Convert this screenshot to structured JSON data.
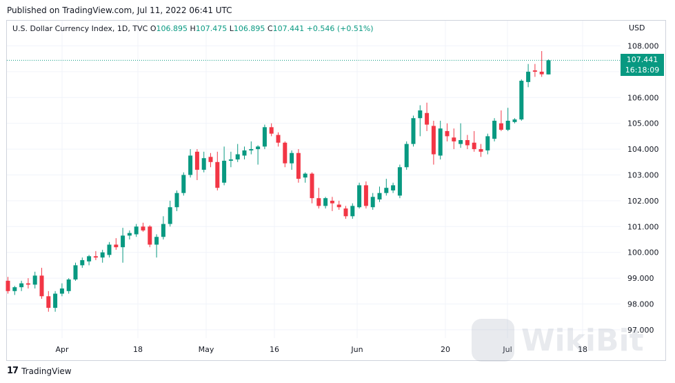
{
  "published": "Published on TradingView.com, Jul 11, 2022 06:41 UTC",
  "legend": {
    "symbol": "U.S. Dollar Currency Index, 1D, TVC",
    "o_label": "O",
    "o": "106.895",
    "h_label": "H",
    "h": "107.475",
    "l_label": "L",
    "l": "106.895",
    "c_label": "C",
    "c": "107.441",
    "change": "+0.546 (+0.51%)"
  },
  "currency": "USD",
  "price_tag": {
    "price": "107.441",
    "countdown": "16:18:09"
  },
  "footer": {
    "brand": "TradingView"
  },
  "watermark": "WikiBit",
  "colors": {
    "up": "#089981",
    "down": "#F23645",
    "grid": "#f0f3fa",
    "text": "#131722"
  },
  "chart_data": {
    "type": "candlestick",
    "title": "U.S. Dollar Currency Index, 1D, TVC",
    "ylabel": "USD",
    "ylim": [
      96.9,
      108.3
    ],
    "y_ticks": [
      "97.000",
      "98.000",
      "99.000",
      "100.000",
      "101.000",
      "102.000",
      "103.000",
      "104.000",
      "105.000",
      "106.000",
      "107.000",
      "108.000"
    ],
    "x_ticks": [
      "Apr",
      "18",
      "May",
      "16",
      "Jun",
      "20",
      "Jul",
      "18"
    ],
    "last_price": 107.441,
    "candles": [
      {
        "o": 98.9,
        "h": 99.05,
        "l": 98.4,
        "c": 98.5
      },
      {
        "o": 98.5,
        "h": 98.7,
        "l": 98.35,
        "c": 98.65
      },
      {
        "o": 98.65,
        "h": 98.9,
        "l": 98.5,
        "c": 98.8
      },
      {
        "o": 98.8,
        "h": 99.0,
        "l": 98.6,
        "c": 98.75
      },
      {
        "o": 98.75,
        "h": 99.25,
        "l": 98.6,
        "c": 99.1
      },
      {
        "o": 99.1,
        "h": 99.4,
        "l": 98.2,
        "c": 98.3
      },
      {
        "o": 98.3,
        "h": 98.5,
        "l": 97.7,
        "c": 97.85
      },
      {
        "o": 97.85,
        "h": 98.5,
        "l": 97.7,
        "c": 98.4
      },
      {
        "o": 98.4,
        "h": 98.8,
        "l": 98.3,
        "c": 98.6
      },
      {
        "o": 98.5,
        "h": 99.0,
        "l": 98.4,
        "c": 98.95
      },
      {
        "o": 98.95,
        "h": 99.6,
        "l": 98.9,
        "c": 99.5
      },
      {
        "o": 99.5,
        "h": 99.8,
        "l": 99.4,
        "c": 99.7
      },
      {
        "o": 99.65,
        "h": 99.9,
        "l": 99.5,
        "c": 99.85
      },
      {
        "o": 99.85,
        "h": 100.05,
        "l": 99.7,
        "c": 99.8
      },
      {
        "o": 99.8,
        "h": 100.1,
        "l": 99.6,
        "c": 100.0
      },
      {
        "o": 99.9,
        "h": 100.4,
        "l": 99.8,
        "c": 100.3
      },
      {
        "o": 100.3,
        "h": 100.55,
        "l": 100.1,
        "c": 100.2
      },
      {
        "o": 100.2,
        "h": 100.95,
        "l": 99.6,
        "c": 100.65
      },
      {
        "o": 100.65,
        "h": 100.85,
        "l": 100.5,
        "c": 100.75
      },
      {
        "o": 100.7,
        "h": 101.1,
        "l": 100.6,
        "c": 101.0
      },
      {
        "o": 101.0,
        "h": 101.15,
        "l": 100.8,
        "c": 100.85
      },
      {
        "o": 101.0,
        "h": 101.05,
        "l": 100.2,
        "c": 100.3
      },
      {
        "o": 100.3,
        "h": 100.7,
        "l": 99.8,
        "c": 100.6
      },
      {
        "o": 100.6,
        "h": 101.4,
        "l": 100.5,
        "c": 101.1
      },
      {
        "o": 101.1,
        "h": 102.0,
        "l": 101.0,
        "c": 101.75
      },
      {
        "o": 101.75,
        "h": 102.4,
        "l": 101.6,
        "c": 102.3
      },
      {
        "o": 102.3,
        "h": 103.1,
        "l": 102.2,
        "c": 103.0
      },
      {
        "o": 103.0,
        "h": 104.0,
        "l": 102.9,
        "c": 103.75
      },
      {
        "o": 103.9,
        "h": 104.0,
        "l": 102.8,
        "c": 103.2
      },
      {
        "o": 103.2,
        "h": 103.9,
        "l": 103.1,
        "c": 103.65
      },
      {
        "o": 103.7,
        "h": 103.85,
        "l": 103.3,
        "c": 103.5
      },
      {
        "o": 103.5,
        "h": 103.9,
        "l": 102.4,
        "c": 102.5
      },
      {
        "o": 102.7,
        "h": 104.1,
        "l": 102.6,
        "c": 103.55
      },
      {
        "o": 103.55,
        "h": 103.9,
        "l": 103.3,
        "c": 103.6
      },
      {
        "o": 103.6,
        "h": 104.2,
        "l": 103.5,
        "c": 103.8
      },
      {
        "o": 103.75,
        "h": 104.1,
        "l": 103.6,
        "c": 103.95
      },
      {
        "o": 103.95,
        "h": 104.3,
        "l": 103.8,
        "c": 104.0
      },
      {
        "o": 104.0,
        "h": 104.15,
        "l": 103.4,
        "c": 104.1
      },
      {
        "o": 104.1,
        "h": 104.95,
        "l": 104.0,
        "c": 104.85
      },
      {
        "o": 104.85,
        "h": 105.0,
        "l": 104.5,
        "c": 104.6
      },
      {
        "o": 104.55,
        "h": 104.65,
        "l": 104.1,
        "c": 104.25
      },
      {
        "o": 104.25,
        "h": 104.3,
        "l": 103.3,
        "c": 103.45
      },
      {
        "o": 103.45,
        "h": 103.95,
        "l": 103.2,
        "c": 103.85
      },
      {
        "o": 103.85,
        "h": 104.0,
        "l": 102.7,
        "c": 102.85
      },
      {
        "o": 102.9,
        "h": 103.1,
        "l": 102.7,
        "c": 103.05
      },
      {
        "o": 103.05,
        "h": 103.1,
        "l": 101.9,
        "c": 102.1
      },
      {
        "o": 102.1,
        "h": 102.5,
        "l": 101.7,
        "c": 101.8
      },
      {
        "o": 101.8,
        "h": 102.15,
        "l": 101.7,
        "c": 102.1
      },
      {
        "o": 102.0,
        "h": 102.15,
        "l": 101.6,
        "c": 101.9
      },
      {
        "o": 101.85,
        "h": 102.0,
        "l": 101.65,
        "c": 101.75
      },
      {
        "o": 101.7,
        "h": 101.8,
        "l": 101.3,
        "c": 101.4
      },
      {
        "o": 101.4,
        "h": 101.9,
        "l": 101.3,
        "c": 101.8
      },
      {
        "o": 101.75,
        "h": 102.7,
        "l": 101.7,
        "c": 102.6
      },
      {
        "o": 102.6,
        "h": 102.75,
        "l": 101.7,
        "c": 101.8
      },
      {
        "o": 101.75,
        "h": 102.3,
        "l": 101.65,
        "c": 102.15
      },
      {
        "o": 102.05,
        "h": 102.55,
        "l": 101.95,
        "c": 102.3
      },
      {
        "o": 102.3,
        "h": 102.85,
        "l": 102.2,
        "c": 102.5
      },
      {
        "o": 102.4,
        "h": 102.7,
        "l": 102.3,
        "c": 102.6
      },
      {
        "o": 102.2,
        "h": 103.4,
        "l": 102.1,
        "c": 103.3
      },
      {
        "o": 103.3,
        "h": 104.3,
        "l": 103.2,
        "c": 104.2
      },
      {
        "o": 104.2,
        "h": 105.3,
        "l": 104.1,
        "c": 105.2
      },
      {
        "o": 105.2,
        "h": 105.7,
        "l": 104.5,
        "c": 105.5
      },
      {
        "o": 105.4,
        "h": 105.8,
        "l": 104.7,
        "c": 104.95
      },
      {
        "o": 104.9,
        "h": 105.1,
        "l": 103.4,
        "c": 103.8
      },
      {
        "o": 103.75,
        "h": 105.1,
        "l": 103.6,
        "c": 104.8
      },
      {
        "o": 104.7,
        "h": 105.0,
        "l": 104.3,
        "c": 104.5
      },
      {
        "o": 104.45,
        "h": 104.8,
        "l": 104.0,
        "c": 104.3
      },
      {
        "o": 104.2,
        "h": 105.0,
        "l": 104.05,
        "c": 104.35
      },
      {
        "o": 104.35,
        "h": 104.55,
        "l": 104.0,
        "c": 104.15
      },
      {
        "o": 104.25,
        "h": 104.7,
        "l": 103.9,
        "c": 104.0
      },
      {
        "o": 104.0,
        "h": 104.2,
        "l": 103.7,
        "c": 103.9
      },
      {
        "o": 103.95,
        "h": 104.6,
        "l": 103.8,
        "c": 104.5
      },
      {
        "o": 104.4,
        "h": 105.2,
        "l": 104.3,
        "c": 105.1
      },
      {
        "o": 105.0,
        "h": 105.5,
        "l": 104.7,
        "c": 104.75
      },
      {
        "o": 104.75,
        "h": 105.6,
        "l": 104.7,
        "c": 105.1
      },
      {
        "o": 105.05,
        "h": 105.2,
        "l": 105.0,
        "c": 105.15
      },
      {
        "o": 105.15,
        "h": 106.7,
        "l": 105.1,
        "c": 106.65
      },
      {
        "o": 106.6,
        "h": 107.3,
        "l": 106.4,
        "c": 107.0
      },
      {
        "o": 107.05,
        "h": 107.3,
        "l": 106.8,
        "c": 107.0
      },
      {
        "o": 107.0,
        "h": 107.8,
        "l": 106.8,
        "c": 106.9
      },
      {
        "o": 106.895,
        "h": 107.475,
        "l": 106.895,
        "c": 107.441
      }
    ]
  }
}
